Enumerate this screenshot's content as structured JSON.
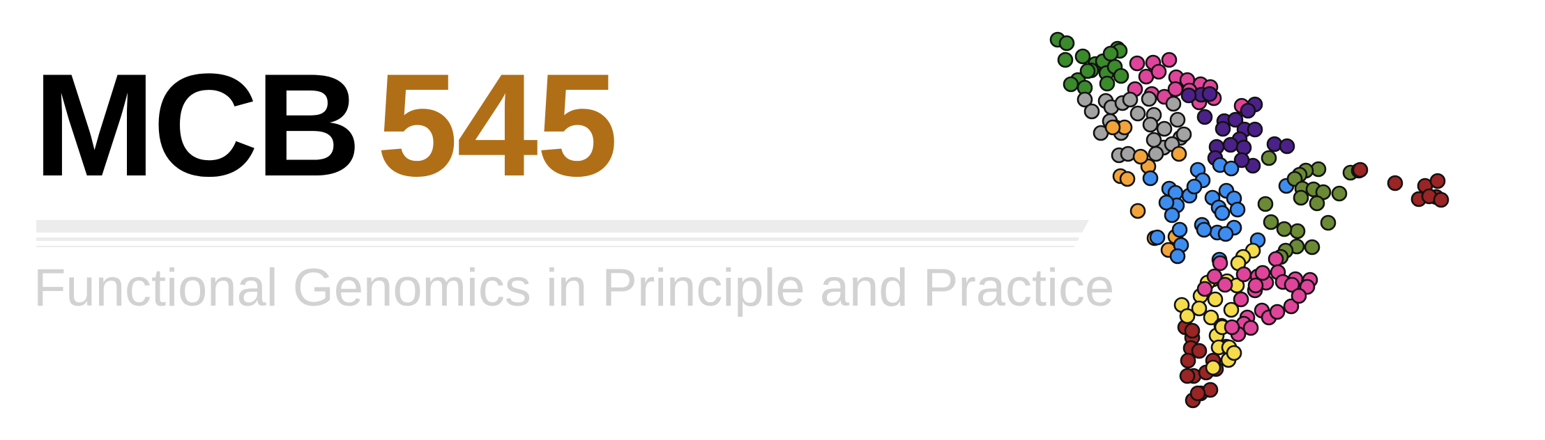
{
  "header": {
    "title_prefix": "MCB",
    "title_number": "545",
    "subtitle": "Functional Genomics in Principle and Practice"
  },
  "colors": {
    "title_prefix": "#000000",
    "title_number": "#b06f16",
    "subtitle": "#d2d2d2",
    "rule": "#e9e9e9",
    "point_outline": "#111111"
  },
  "graphic": {
    "description_icon": "americas-dot-map-icon",
    "group_colors": {
      "dark_green": "#3b8a2c",
      "pink": "#e0449a",
      "purple": "#4b2189",
      "gray": "#a3a3a3",
      "orange": "#f2a43a",
      "blue": "#3d8df0",
      "olive": "#6b8a35",
      "dark_red": "#9b2424",
      "yellow": "#f5dc4c"
    }
  }
}
